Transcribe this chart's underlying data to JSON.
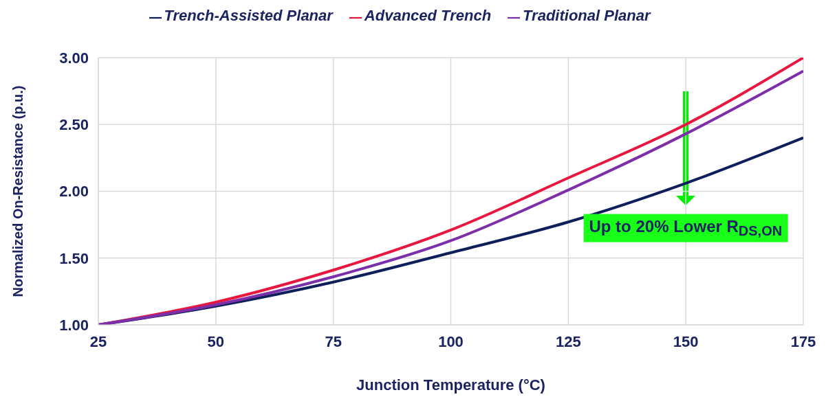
{
  "chart_data": {
    "type": "line",
    "xlabel": "Junction Temperature (°C)",
    "ylabel": "Normalized On-Resistance (p.u.)",
    "x": [
      25,
      50,
      75,
      100,
      125,
      150,
      175
    ],
    "series": [
      {
        "name": "Trench-Assisted Planar",
        "color": "#0f1f5c",
        "values": [
          1.0,
          1.14,
          1.32,
          1.54,
          1.77,
          2.06,
          2.4
        ]
      },
      {
        "name": "Advanced Trench",
        "color": "#e8173f",
        "values": [
          1.0,
          1.17,
          1.41,
          1.71,
          2.1,
          2.5,
          3.0
        ]
      },
      {
        "name": "Traditional Planar",
        "color": "#7b2fa8",
        "values": [
          1.0,
          1.15,
          1.36,
          1.63,
          2.01,
          2.43,
          2.9
        ]
      }
    ],
    "xlim": [
      25,
      175
    ],
    "xticks": [
      25,
      50,
      75,
      100,
      125,
      150,
      175
    ],
    "ylim": [
      1,
      3
    ],
    "yticks": [
      {
        "value": 1,
        "label": "1.00"
      },
      {
        "value": 1.5,
        "label": "1.50"
      },
      {
        "value": 2,
        "label": "2.00"
      },
      {
        "value": 2.5,
        "label": "2.50"
      },
      {
        "value": 3,
        "label": "3.00"
      }
    ],
    "grid": true,
    "legend": "top",
    "marker": "none",
    "line_style": "solid",
    "annotations": [
      "Up to 20% Lower R$_{DS,ON}$"
    ]
  }
}
